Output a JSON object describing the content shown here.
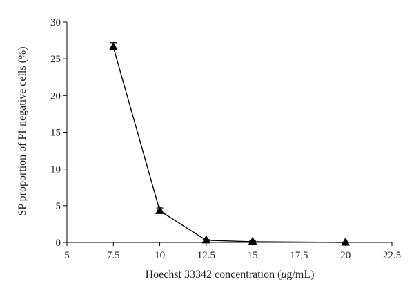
{
  "chart_data": {
    "type": "line",
    "xlabel_prefix": "Hoechst 33342 concentration (",
    "xlabel_mu": "μ",
    "xlabel_suffix": "g/mL)",
    "ylabel": "SP proportion of PI-negative cells (%)",
    "xlim": [
      5,
      22.5
    ],
    "ylim": [
      0,
      30
    ],
    "xticks": [
      5,
      7.5,
      10,
      12.5,
      15,
      17.5,
      20,
      22.5
    ],
    "xtick_labels": [
      "5",
      "7.5",
      "10",
      "12.5",
      "15",
      "17.5",
      "20",
      "22.5"
    ],
    "yticks": [
      0,
      5,
      10,
      15,
      20,
      25,
      30
    ],
    "ytick_labels": [
      "0",
      "5",
      "10",
      "15",
      "20",
      "25",
      "30"
    ],
    "grid": false,
    "series": [
      {
        "marker": "triangle",
        "color": "#000000",
        "x": [
          7.5,
          10,
          12.5,
          15,
          20
        ],
        "y": [
          26.6,
          4.3,
          0.3,
          0.1,
          0.0
        ],
        "error": [
          0.6,
          0.4,
          0.1,
          0.1,
          0.05
        ]
      }
    ]
  }
}
